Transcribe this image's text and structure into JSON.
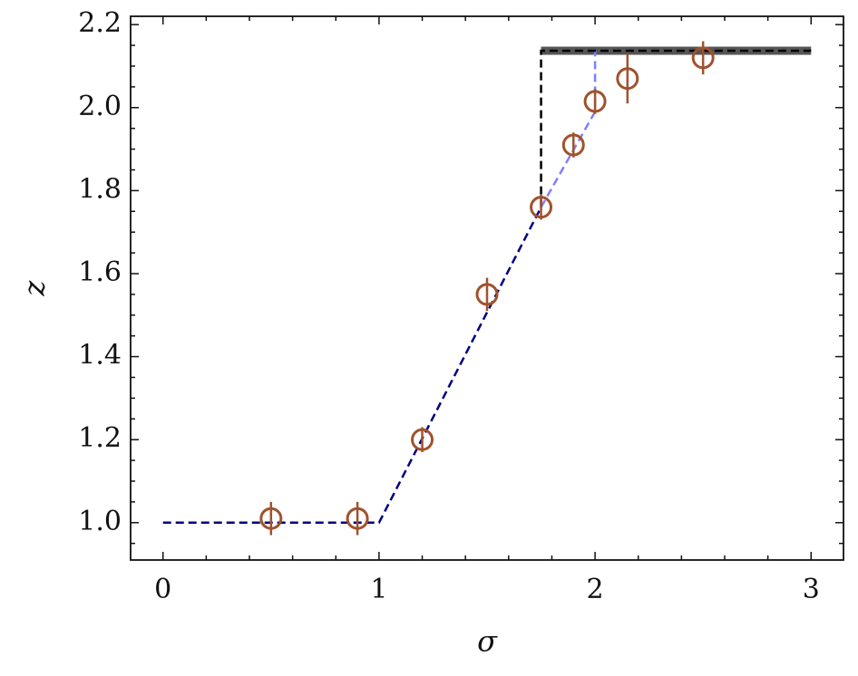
{
  "chart_data": {
    "type": "line",
    "xlabel": "σ",
    "ylabel": "z",
    "xlim": [
      -0.15,
      3.15
    ],
    "ylim": [
      0.91,
      2.22
    ],
    "xticks": [
      0,
      1,
      2,
      3
    ],
    "yticks": [
      {
        "value": 1,
        "label": "1.0"
      },
      {
        "value": 1.2,
        "label": "1.2"
      },
      {
        "value": 1.4,
        "label": "1.4"
      },
      {
        "value": 1.6,
        "label": "1.6"
      },
      {
        "value": 1.8,
        "label": "1.8"
      },
      {
        "value": 2,
        "label": "2.0"
      },
      {
        "value": 2.2,
        "label": "2.2"
      }
    ],
    "xminor_ticks": [
      0.2,
      0.4,
      0.6,
      0.8,
      1.2,
      1.4,
      1.6,
      1.8,
      2.2,
      2.4,
      2.6,
      2.8
    ],
    "yminor_ticks": [
      0.95,
      1.05,
      1.1,
      1.15,
      1.25,
      1.3,
      1.35,
      1.45,
      1.5,
      1.55,
      1.65,
      1.7,
      1.75,
      1.85,
      1.9,
      1.95,
      2.05,
      2.1,
      2.15
    ],
    "series": [
      {
        "color": "#444444",
        "linewidth": 9,
        "dashed": false,
        "opacity": 0.9,
        "x": [
          1.75,
          3
        ],
        "values": [
          2.137,
          2.137
        ]
      },
      {
        "color": "#7f7fff",
        "linewidth": 2.5,
        "dashed": true,
        "opacity": 1,
        "x": [
          1.75,
          2,
          2
        ],
        "values": [
          1.76,
          1.99,
          2.137
        ]
      },
      {
        "color": "#000080",
        "linewidth": 2.5,
        "dashed": true,
        "opacity": 1,
        "x": [
          0,
          1,
          1.75
        ],
        "values": [
          1,
          1,
          1.76
        ]
      },
      {
        "color": "#000000",
        "linewidth": 2.5,
        "dashed": true,
        "opacity": 1,
        "x": [
          1.75,
          1.75,
          3
        ],
        "values": [
          1.76,
          2.137,
          2.137
        ]
      }
    ],
    "points": {
      "color": "#a0522d",
      "x": [
        0.5,
        0.9,
        1.2,
        1.5,
        1.75,
        1.9,
        2.0,
        2.15,
        2.5
      ],
      "values": [
        1.01,
        1.01,
        1.2,
        1.55,
        1.76,
        1.91,
        2.015,
        2.07,
        2.12
      ],
      "errors": [
        0.04,
        0.04,
        0.03,
        0.04,
        0.03,
        0.03,
        0.03,
        0.06,
        0.04
      ]
    }
  }
}
